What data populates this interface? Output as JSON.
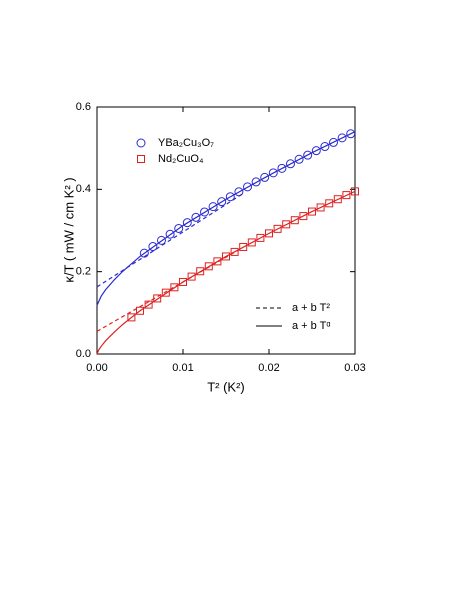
{
  "chart_data": {
    "type": "scatter",
    "xlabel": "T² (K²)",
    "ylabel": "κ/T ( mW / cm K² )",
    "xlim": [
      0,
      0.03
    ],
    "ylim": [
      0,
      0.6
    ],
    "xticks": [
      {
        "value": 0,
        "label": "0.00"
      },
      0.01,
      0.02,
      0.03
    ],
    "yticks": [
      {
        "value": 0,
        "label": "0.0"
      },
      0.2,
      0.4,
      0.6
    ],
    "series": [
      {
        "name": "YBa₂Cu₃O₇",
        "color": "#2b2bd0",
        "marker": "circle",
        "x": [
          0.0055,
          0.0065,
          0.0075,
          0.0085,
          0.0095,
          0.0105,
          0.0115,
          0.0125,
          0.0135,
          0.0145,
          0.0155,
          0.0165,
          0.0175,
          0.0185,
          0.0195,
          0.0205,
          0.0215,
          0.0225,
          0.0235,
          0.0245,
          0.0255,
          0.0265,
          0.0275,
          0.0285,
          0.0295
        ],
        "values": [
          0.245,
          0.261,
          0.276,
          0.291,
          0.305,
          0.319,
          0.332,
          0.345,
          0.358,
          0.37,
          0.382,
          0.394,
          0.406,
          0.418,
          0.429,
          0.44,
          0.451,
          0.462,
          0.473,
          0.483,
          0.494,
          0.504,
          0.514,
          0.525,
          0.535
        ]
      },
      {
        "name": "Nd₂CuO₄",
        "color": "#dd2222",
        "marker": "square",
        "x": [
          0.004,
          0.005,
          0.006,
          0.007,
          0.008,
          0.009,
          0.01,
          0.011,
          0.012,
          0.013,
          0.014,
          0.015,
          0.016,
          0.017,
          0.018,
          0.019,
          0.02,
          0.021,
          0.022,
          0.023,
          0.024,
          0.025,
          0.026,
          0.027,
          0.028,
          0.029,
          0.03
        ],
        "values": [
          0.089,
          0.105,
          0.12,
          0.135,
          0.149,
          0.162,
          0.175,
          0.188,
          0.201,
          0.213,
          0.225,
          0.237,
          0.248,
          0.26,
          0.271,
          0.282,
          0.293,
          0.304,
          0.315,
          0.325,
          0.335,
          0.346,
          0.356,
          0.366,
          0.376,
          0.386,
          0.395
        ]
      }
    ],
    "fits": [
      {
        "color": "#2b2bd0",
        "dash": false,
        "x": [
          0,
          0.0005,
          0.001,
          0.002,
          0.003,
          0.005,
          0.01,
          0.015,
          0.02,
          0.025,
          0.03
        ],
        "values": [
          0.118,
          0.141,
          0.156,
          0.18,
          0.201,
          0.237,
          0.312,
          0.376,
          0.434,
          0.489,
          0.54
        ]
      },
      {
        "color": "#2b2bd0",
        "dash": true,
        "x": [
          0,
          0.017
        ],
        "values": [
          0.163,
          0.39
        ]
      },
      {
        "color": "#dd2222",
        "dash": false,
        "x": [
          0,
          0.0002,
          0.0005,
          0.001,
          0.002,
          0.003,
          0.005,
          0.01,
          0.015,
          0.02,
          0.025,
          0.03
        ],
        "values": [
          0,
          0.01,
          0.019,
          0.032,
          0.053,
          0.072,
          0.105,
          0.175,
          0.237,
          0.293,
          0.346,
          0.395
        ]
      },
      {
        "color": "#dd2222",
        "dash": true,
        "x": [
          0,
          0.017
        ],
        "values": [
          0.055,
          0.259
        ]
      }
    ],
    "fit_legend": [
      {
        "label": "a + b T²",
        "dash": true
      },
      {
        "label": "a + b Tᵅ",
        "dash": false
      }
    ]
  }
}
